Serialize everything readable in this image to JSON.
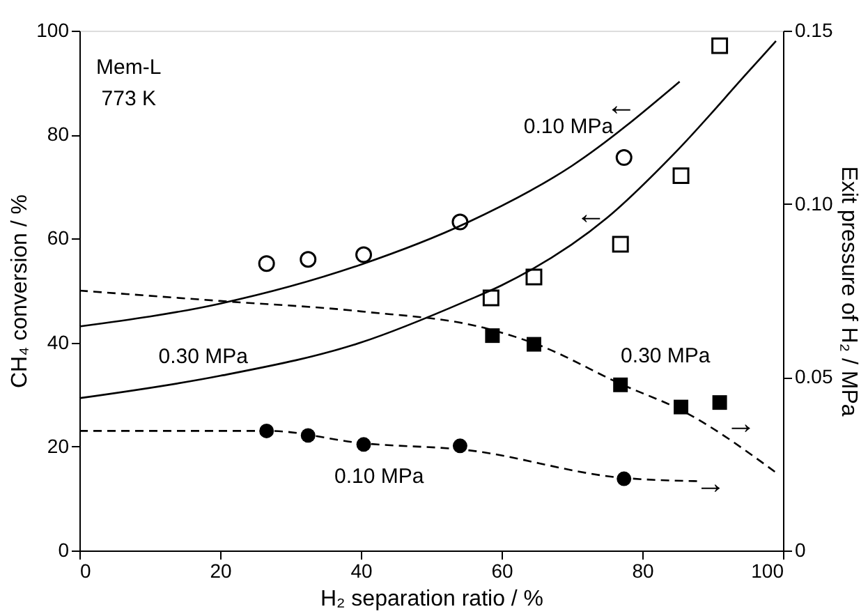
{
  "chart_data": {
    "type": "scatter",
    "xlabel": "H₂ separation ratio / %",
    "ylabel": "CH₄ conversion / %",
    "y2label": "Exit pressure of H₂ / MPa",
    "xlim": [
      0,
      100
    ],
    "xticks": [
      0,
      20,
      40,
      60,
      80,
      100
    ],
    "ylim": [
      0,
      100
    ],
    "yticks": [
      0,
      20,
      40,
      60,
      80,
      100
    ],
    "y2lim": [
      0,
      0.15
    ],
    "y2ticks": [
      {
        "value": 0,
        "label": "0"
      },
      {
        "value": 0.05,
        "label": "0.05"
      },
      {
        "value": 0.1,
        "label": "0.10"
      },
      {
        "value": 0.15,
        "label": "0.15"
      }
    ],
    "grid": false,
    "series": [
      {
        "marker": "circle",
        "color": "#000000",
        "x": [
          26.6,
          32.5,
          40.4,
          54.1,
          77.4
        ],
        "values": [
          55.2,
          56.0,
          56.9,
          63.2,
          75.6
        ]
      },
      {
        "marker": "square",
        "color": "#000000",
        "x": [
          58.5,
          64.6,
          76.9,
          85.5,
          91.0
        ],
        "values": [
          48.6,
          52.6,
          58.9,
          72.1,
          97.1
        ]
      },
      {
        "marker": "square",
        "color": "#000000",
        "axis": "y2",
        "x": [
          58.7,
          64.6,
          76.9,
          85.5,
          91.0
        ],
        "values": [
          0.062,
          0.0595,
          0.0478,
          0.0414,
          0.0427
        ]
      },
      {
        "marker": "circle",
        "color": "#000000",
        "axis": "y2",
        "x": [
          26.6,
          32.5,
          40.4,
          54.1,
          77.4
        ],
        "values": [
          0.0345,
          0.0332,
          0.0306,
          0.0302,
          0.0207
        ]
      },
      {
        "type": "line",
        "line_style": "solid",
        "color": "#000000",
        "x": [
          0,
          20,
          40,
          55,
          70,
          85.3
        ],
        "values": [
          43.1,
          47.5,
          55,
          63,
          74,
          90.2
        ]
      },
      {
        "type": "line",
        "line_style": "solid",
        "color": "#000000",
        "x": [
          0,
          20,
          40,
          55,
          60,
          75,
          85,
          95,
          99
        ],
        "values": [
          29.3,
          33.6,
          40,
          48,
          51,
          64,
          77,
          92,
          98
        ]
      },
      {
        "type": "line",
        "line_style": "dashed",
        "color": "#000000",
        "axis": "y2",
        "x": [
          0,
          20,
          40,
          58,
          65,
          77,
          86,
          99
        ],
        "values": [
          0.075,
          0.072,
          0.069,
          0.064,
          0.0595,
          0.048,
          0.04,
          0.0225
        ]
      },
      {
        "type": "line",
        "line_style": "dashed",
        "color": "#000000",
        "axis": "y2",
        "x": [
          0,
          27,
          40,
          55,
          77,
          88
        ],
        "values": [
          0.0345,
          0.0345,
          0.031,
          0.029,
          0.021,
          0.02
        ]
      }
    ],
    "annotations": [
      "Mem-L",
      "773 K",
      "0.10 MPa",
      "0.30 MPa",
      "0.10 MPa",
      "0.30 MPa",
      "←",
      "←",
      "→",
      "→"
    ]
  }
}
